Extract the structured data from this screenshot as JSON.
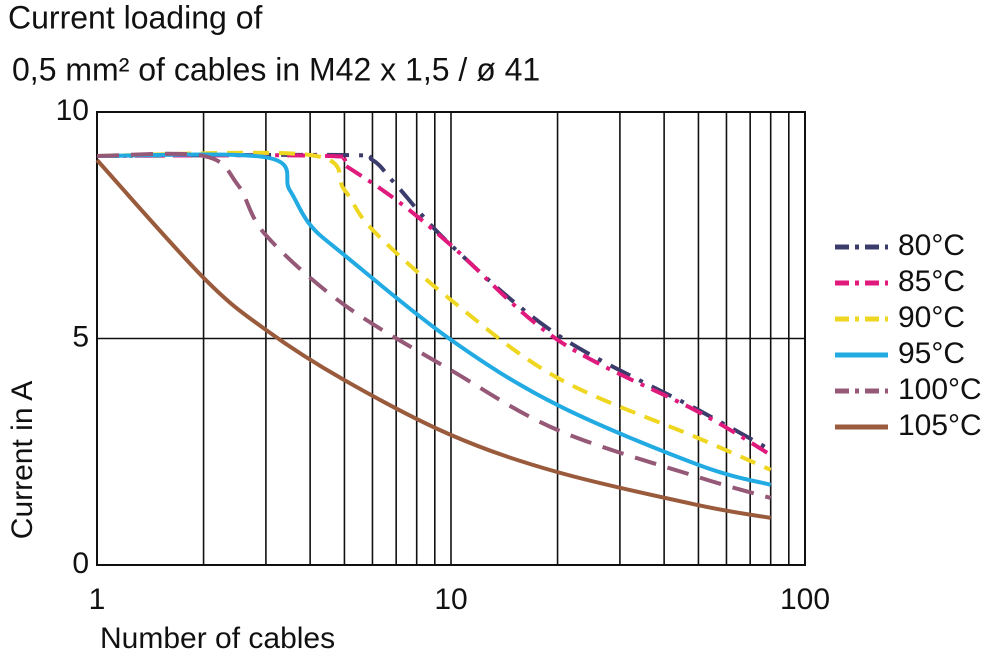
{
  "chart_data": {
    "type": "line",
    "title": [
      "Current  loading  of",
      "0,5 mm² of cables in M42 x 1,5 / ø 41"
    ],
    "xlabel": "Number  of  cables",
    "ylabel": "Current in A",
    "xscale": "log",
    "xlim": [
      1,
      100
    ],
    "xticks": [
      1,
      10,
      100
    ],
    "xminor": [
      2,
      3,
      4,
      5,
      6,
      7,
      8,
      9,
      20,
      30,
      40,
      50,
      60,
      70,
      80,
      90
    ],
    "ylim": [
      0,
      10
    ],
    "yticks": [
      0,
      5,
      10
    ],
    "grid": true,
    "legend": "right",
    "series": [
      {
        "name": "80°C",
        "color": "#3c3c6c",
        "x": [
          1,
          5,
          6,
          7,
          10,
          20,
          50,
          80
        ],
        "values": [
          9.03,
          9.05,
          8.94,
          8.39,
          7.06,
          5.08,
          3.42,
          2.54
        ]
      },
      {
        "name": "85°C",
        "color": "#e0197d",
        "x": [
          1,
          4.5,
          5,
          7,
          10,
          20,
          50,
          80
        ],
        "values": [
          9.03,
          9.03,
          8.83,
          8.06,
          7.06,
          4.97,
          3.38,
          2.43
        ]
      },
      {
        "name": "90°C",
        "color": "#eed621",
        "x": [
          1,
          4,
          5,
          6,
          10,
          20,
          50,
          80
        ],
        "values": [
          9.03,
          9.05,
          8.28,
          7.4,
          5.85,
          4.13,
          2.8,
          2.1
        ]
      },
      {
        "name": "95°C",
        "color": "#22aae2",
        "x": [
          1,
          3,
          3.5,
          4,
          5,
          10,
          20,
          50,
          80
        ],
        "values": [
          9.03,
          9.0,
          8.28,
          7.51,
          6.84,
          4.97,
          3.53,
          2.21,
          1.77
        ]
      },
      {
        "name": "100°C",
        "color": "#955877",
        "x": [
          1,
          2,
          2.5,
          3,
          5,
          10,
          20,
          50,
          80
        ],
        "values": [
          9.03,
          9.03,
          8.39,
          7.28,
          5.74,
          4.3,
          2.98,
          1.94,
          1.48
        ]
      },
      {
        "name": "105°C",
        "color": "#9a5a3c",
        "x": [
          1,
          2,
          3,
          5,
          10,
          20,
          50,
          80
        ],
        "values": [
          8.94,
          6.34,
          5.19,
          4.08,
          2.87,
          2.05,
          1.32,
          1.04
        ]
      }
    ]
  }
}
